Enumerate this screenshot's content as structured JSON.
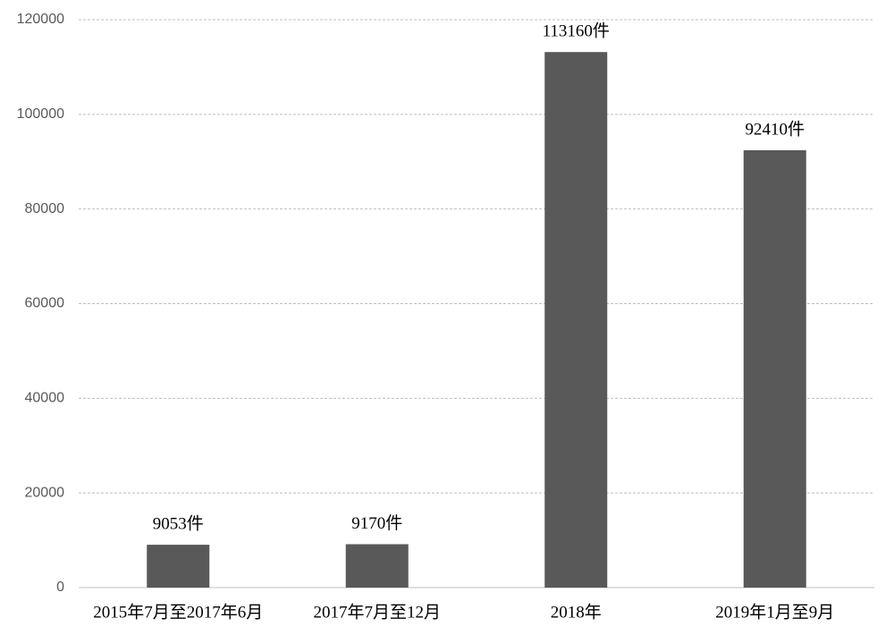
{
  "chart_data": {
    "type": "bar",
    "categories": [
      "2015年7月至2017年6月",
      "2017年7月至12月",
      "2018年",
      "2019年1月至9月"
    ],
    "values": [
      9053,
      9170,
      113160,
      92410
    ],
    "value_labels": [
      "9053件",
      "9170件",
      "113160件",
      "92410件"
    ],
    "color": "#595959",
    "ylim": [
      0,
      120000
    ],
    "yticks": [
      0,
      20000,
      40000,
      60000,
      80000,
      100000,
      120000
    ],
    "grid": true
  }
}
